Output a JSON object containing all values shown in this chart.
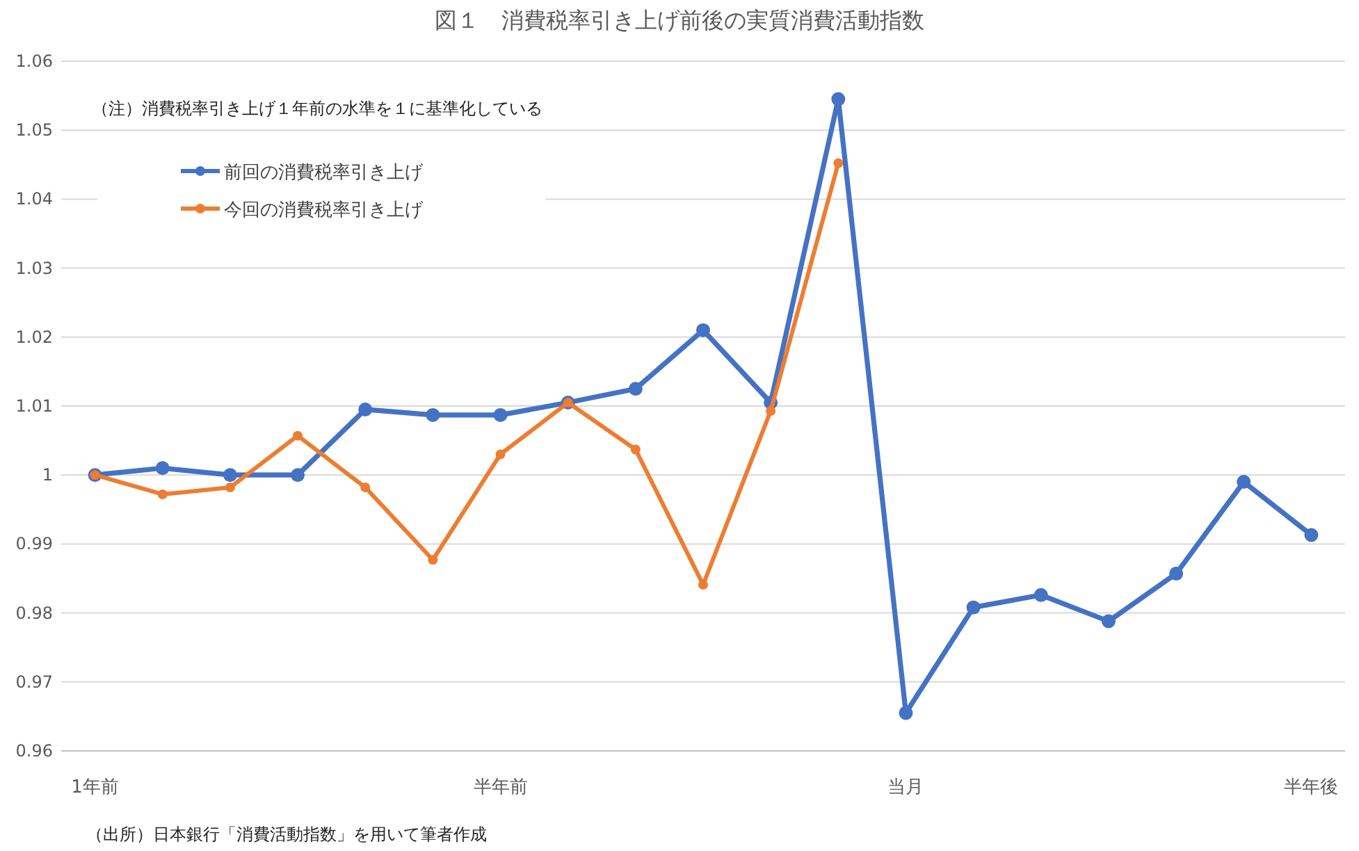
{
  "chart_data": {
    "type": "line",
    "title": "図１　消費税率引き上げ前後の実質消費活動指数",
    "categories": [
      "1年前",
      null,
      null,
      null,
      null,
      null,
      "半年前",
      null,
      null,
      null,
      null,
      null,
      "当月",
      null,
      null,
      null,
      null,
      null,
      "半年後"
    ],
    "series": [
      {
        "name": "前回の消費税率引き上げ",
        "color": "#4472c4",
        "values": [
          1.0,
          1.001,
          1.0,
          1.0,
          1.0095,
          1.0087,
          1.0087,
          1.0105,
          1.0125,
          1.021,
          1.0105,
          1.0545,
          0.9655,
          0.9808,
          0.9826,
          0.9788,
          0.9857,
          0.999,
          0.9913
        ]
      },
      {
        "name": "今回の消費税率引き上げ",
        "color": "#ed7d31",
        "values": [
          1.0,
          0.9972,
          0.9982,
          1.0057,
          0.9982,
          0.9877,
          1.003,
          1.0105,
          1.0037,
          0.9841,
          1.0093,
          1.0452,
          null,
          null,
          null,
          null,
          null,
          null,
          null
        ]
      }
    ],
    "ylim": [
      0.96,
      1.06
    ],
    "yticks": [
      0.96,
      0.97,
      0.98,
      0.99,
      1,
      1.01,
      1.02,
      1.03,
      1.04,
      1.05,
      1.06
    ],
    "grid": "y",
    "legend": "top left",
    "marker": "circle",
    "line_style": "solid",
    "annotations": [
      "（注）消費税率引き上げ１年前の水準を１に基準化している",
      "（出所）日本銀行「消費活動指数」を用いて筆者作成"
    ]
  }
}
